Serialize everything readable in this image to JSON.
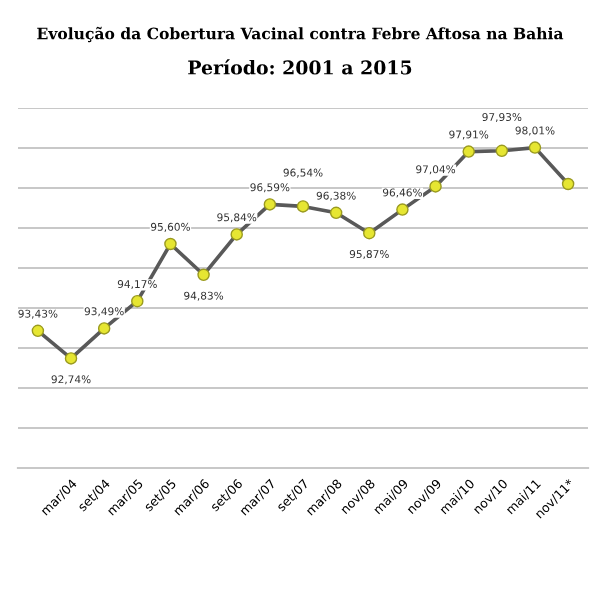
{
  "chart_data": {
    "type": "line",
    "title": "Evolução da Cobertura Vacinal contra Febre Aftosa na Bahia",
    "subtitle": "Período: 2001 a 2015",
    "categories": [
      null,
      "mar/04",
      "set/04",
      "mar/05",
      "set/05",
      "mar/06",
      "set/06",
      "mar/07",
      "set/07",
      "mar/08",
      "nov/08",
      "mai/09",
      "nov/09",
      "mai/10",
      "nov/10",
      "mai/11",
      "nov/11*"
    ],
    "series": [
      {
        "color": "#595959",
        "values": [
          93.43,
          92.74,
          93.49,
          94.17,
          95.6,
          94.83,
          95.84,
          96.59,
          96.54,
          96.38,
          95.87,
          96.46,
          97.04,
          97.91,
          97.93,
          98.01,
          97.1
        ],
        "value_labels": [
          "93,43%",
          "92,74%",
          "93,49%",
          "94,17%",
          "95,60%",
          "94,83%",
          "95,84%",
          "96,59%",
          "96,54%",
          "96,38%",
          "95,87%",
          "96,46%",
          "97,04%",
          "97,91%",
          "97,93%",
          "98,01%",
          null
        ]
      }
    ],
    "marker": "circle",
    "line_style": "solid",
    "ylim": [
      90,
      99
    ],
    "yticks": [
      {
        "value": 90,
        "label": null
      },
      {
        "value": 91,
        "label": null
      },
      {
        "value": 92,
        "label": null
      },
      {
        "value": 93,
        "label": null
      },
      {
        "value": 94,
        "label": null
      },
      {
        "value": 95,
        "label": null
      },
      {
        "value": 96,
        "label": null
      },
      {
        "value": 97,
        "label": null
      },
      {
        "value": 98,
        "label": null
      },
      {
        "value": 99,
        "label": null
      }
    ],
    "grid": "y",
    "legend": false,
    "tick_labels": "x"
  }
}
